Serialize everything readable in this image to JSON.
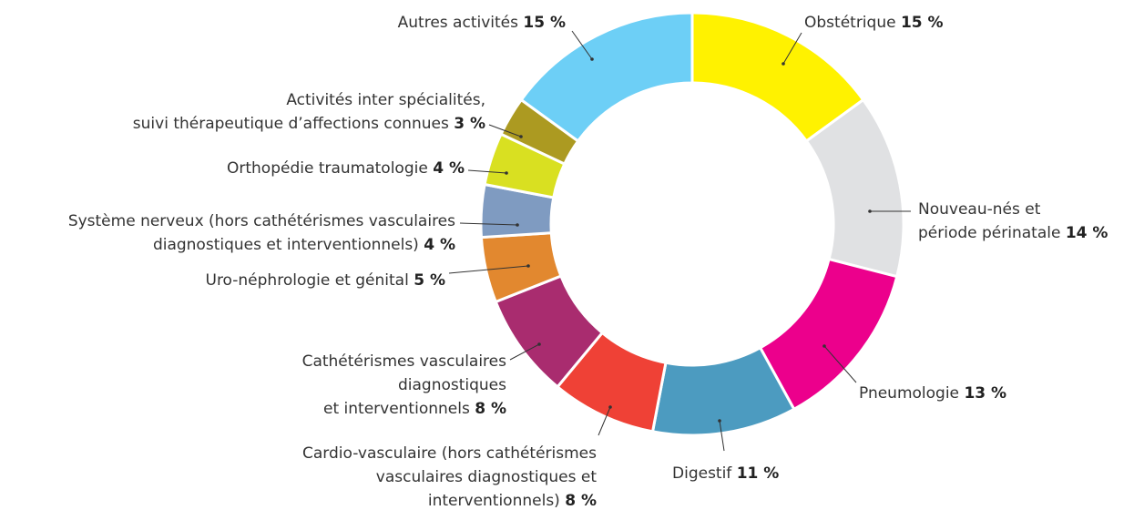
{
  "chart_data": {
    "type": "donut",
    "categories": [
      "Obstétrique",
      "Nouveau-nés et\npériode périnatale",
      "Pneumologie",
      "Digestif",
      "Cardio-vasculaire (hors cathétérismes\nvasculaires diagnostiques et\ninterventionnels)",
      "Cathétérismes vasculaires\ndiagnostiques\net interventionnels",
      "Uro-néphrologie et génital",
      "Système nerveux (hors cathétérismes vasculaires\ndiagnostiques et interventionnels)",
      "Orthopédie traumatologie",
      "Activités inter spécialités,\nsuivi thérapeutique d’affections connues",
      "Autres activités"
    ],
    "values": [
      15,
      14,
      13,
      11,
      8,
      8,
      5,
      4,
      4,
      3,
      15
    ],
    "value_labels": [
      "15 %",
      "14 %",
      "13 %",
      "11 %",
      "8 %",
      "8 %",
      "5 %",
      "4 %",
      "4 %",
      "3 %",
      "15 %"
    ],
    "colors": [
      "#fff200",
      "#e0e1e3",
      "#ec008c",
      "#4c9bc0",
      "#ef4136",
      "#a92c6f",
      "#e2882f",
      "#7f9bc1",
      "#d9e021",
      "#ac9a21",
      "#6dcff6"
    ]
  }
}
